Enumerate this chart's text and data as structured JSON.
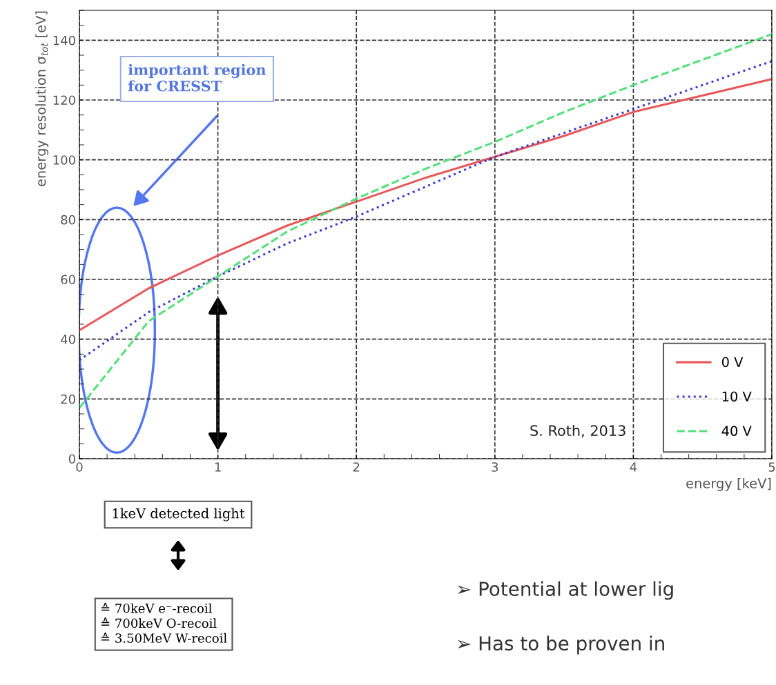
{
  "chart_data": {
    "type": "line",
    "xlabel": "energy [keV]",
    "ylabel": "energy resolution σ$_{tot}$ [eV]",
    "x": [
      0,
      0.5,
      1,
      1.5,
      2,
      2.5,
      3,
      3.5,
      4,
      5
    ],
    "series": [
      {
        "name": "0 V",
        "color": "#e8585a",
        "line_style": "solid",
        "values": [
          43,
          57,
          68,
          78,
          86,
          94,
          101,
          108,
          116,
          127
        ]
      },
      {
        "name": "10 V",
        "color": "#3b3bd0",
        "line_style": "dotted",
        "values": [
          33,
          49,
          61,
          72,
          81,
          91,
          101,
          109,
          117,
          133
        ]
      },
      {
        "name": "40 V",
        "color": "#52e07a",
        "line_style": "dashed",
        "values": [
          17,
          46,
          61,
          76,
          87,
          97,
          106,
          116,
          125,
          142
        ]
      }
    ],
    "xlim": [
      0,
      5
    ],
    "xticks": [
      0,
      1,
      2,
      3,
      4,
      5
    ],
    "ylim": [
      0,
      150
    ],
    "yticks": [
      0,
      20,
      40,
      60,
      80,
      100,
      120,
      140
    ],
    "grid": true,
    "legend": "bottom right",
    "marker": "none",
    "annotations": [
      "important region\nfor CRESST",
      "S. Roth, 2013",
      "1keV detected light",
      "≙ 70keV e⁻-recoil\n≙ 700keV O-recoil\n≙ 3.50MeV W-recoil",
      "➢ Potential at lower lig",
      "➢ Has to be proven in"
    ]
  }
}
